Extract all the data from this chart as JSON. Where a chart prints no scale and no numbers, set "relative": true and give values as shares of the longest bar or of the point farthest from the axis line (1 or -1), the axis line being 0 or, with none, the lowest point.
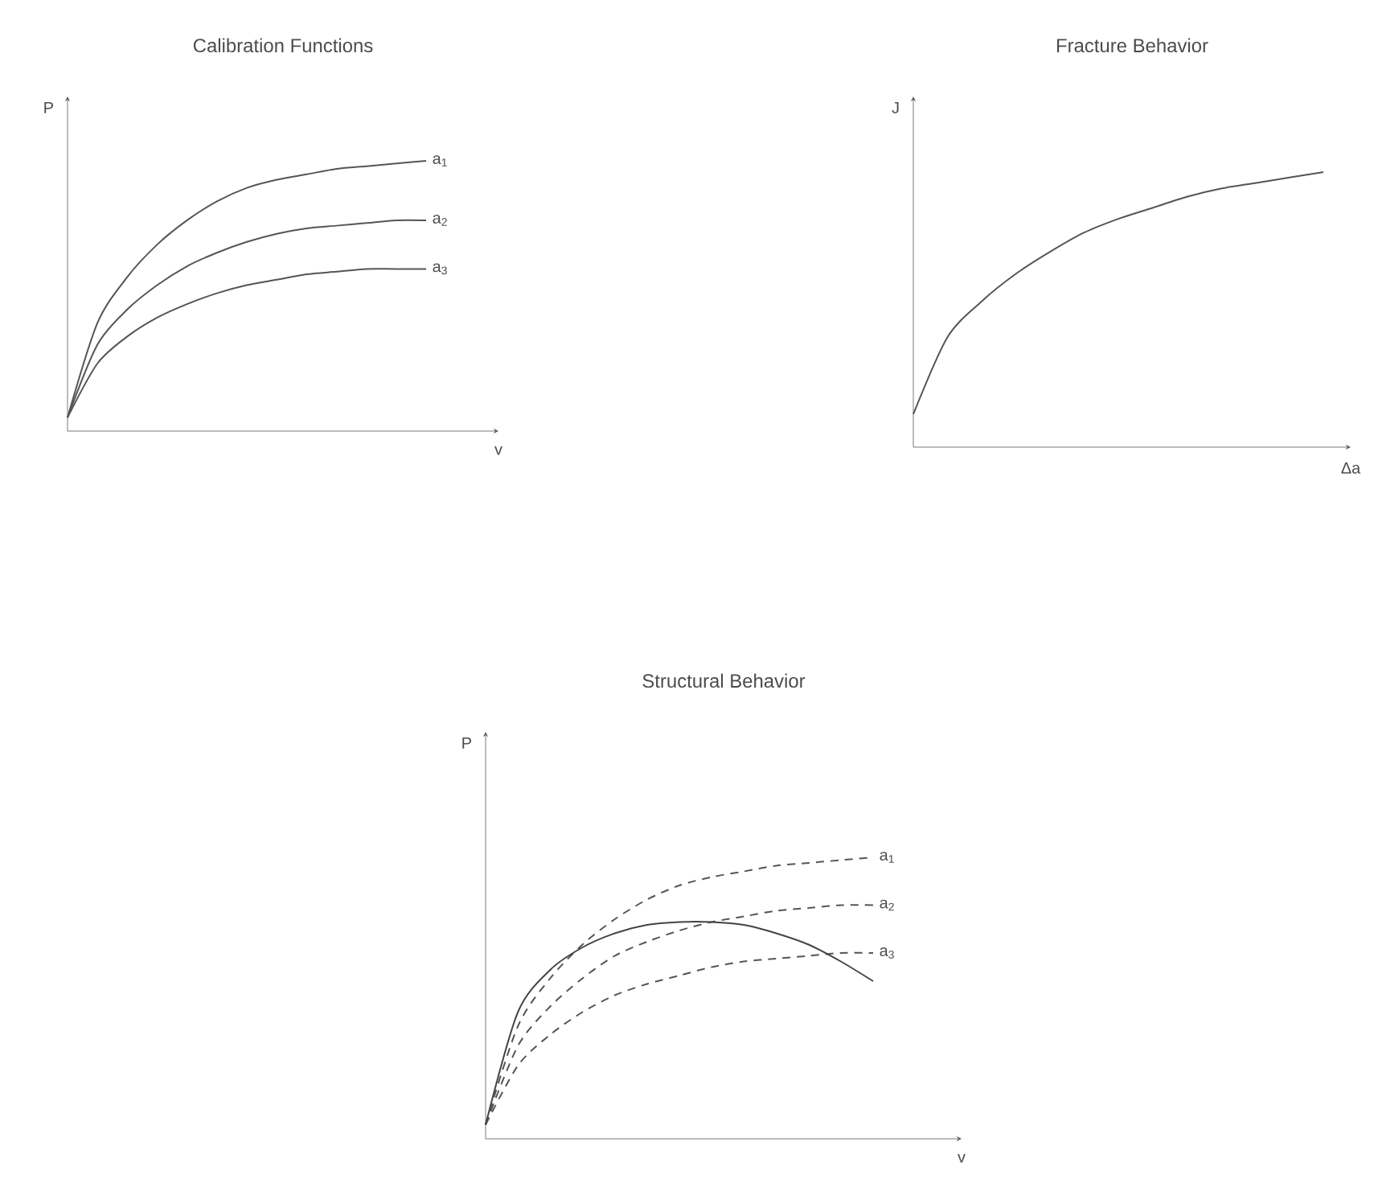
{
  "chart_data": [
    {
      "type": "line",
      "title": "Calibration Functions",
      "xlabel": "v",
      "ylabel": "P",
      "relative": true,
      "categories": [
        null,
        null,
        null,
        null,
        null,
        null,
        null,
        null,
        null,
        null,
        null,
        null,
        null
      ],
      "series": [
        {
          "name": "a$_{1}$",
          "color": "#555555",
          "line_style": "solid",
          "values": [
            0.05,
            0.4,
            0.57,
            0.69,
            0.78,
            0.85,
            0.9,
            0.93,
            0.95,
            0.97,
            0.98,
            0.99,
            1.0
          ]
        },
        {
          "name": "a$_{2}$",
          "color": "#555555",
          "line_style": "solid",
          "values": [
            0.05,
            0.32,
            0.45,
            0.54,
            0.61,
            0.66,
            0.7,
            0.73,
            0.75,
            0.76,
            0.77,
            0.78,
            0.78
          ]
        },
        {
          "name": "a$_{3}$",
          "color": "#555555",
          "line_style": "solid",
          "values": [
            0.05,
            0.25,
            0.35,
            0.42,
            0.47,
            0.51,
            0.54,
            0.56,
            0.58,
            0.59,
            0.6,
            0.6,
            0.6
          ]
        }
      ]
    },
    {
      "type": "line",
      "title": "Fracture Behavior",
      "xlabel": "Δa",
      "ylabel": "J",
      "relative": true,
      "categories": [
        null,
        null,
        null,
        null,
        null,
        null,
        null,
        null,
        null,
        null,
        null,
        null,
        null
      ],
      "series": [
        {
          "color": "#555555",
          "line_style": "solid",
          "values": [
            0.12,
            0.4,
            0.53,
            0.63,
            0.71,
            0.78,
            0.83,
            0.87,
            0.91,
            0.94,
            0.96,
            0.98,
            1.0
          ]
        }
      ]
    },
    {
      "type": "line",
      "title": "Structural Behavior",
      "xlabel": "v",
      "ylabel": "P",
      "relative": true,
      "categories": [
        null,
        null,
        null,
        null,
        null,
        null,
        null,
        null,
        null,
        null,
        null,
        null,
        null
      ],
      "series": [
        {
          "name": "a$_{1}$",
          "color": "#555555",
          "line_style": "dashed",
          "values": [
            0.05,
            0.4,
            0.57,
            0.69,
            0.78,
            0.85,
            0.9,
            0.93,
            0.95,
            0.97,
            0.98,
            0.99,
            1.0
          ]
        },
        {
          "name": "a$_{2}$",
          "color": "#555555",
          "line_style": "dashed",
          "values": [
            0.05,
            0.33,
            0.47,
            0.57,
            0.65,
            0.7,
            0.74,
            0.77,
            0.79,
            0.81,
            0.82,
            0.83,
            0.83
          ]
        },
        {
          "name": "a$_{3}$",
          "color": "#555555",
          "line_style": "dashed",
          "values": [
            0.05,
            0.26,
            0.37,
            0.45,
            0.51,
            0.55,
            0.58,
            0.61,
            0.63,
            0.64,
            0.65,
            0.66,
            0.66
          ]
        },
        {
          "color": "#444444",
          "line_style": "solid",
          "values": [
            0.05,
            0.45,
            0.6,
            0.68,
            0.73,
            0.76,
            0.77,
            0.77,
            0.76,
            0.73,
            0.69,
            0.63,
            0.56
          ]
        }
      ]
    }
  ]
}
